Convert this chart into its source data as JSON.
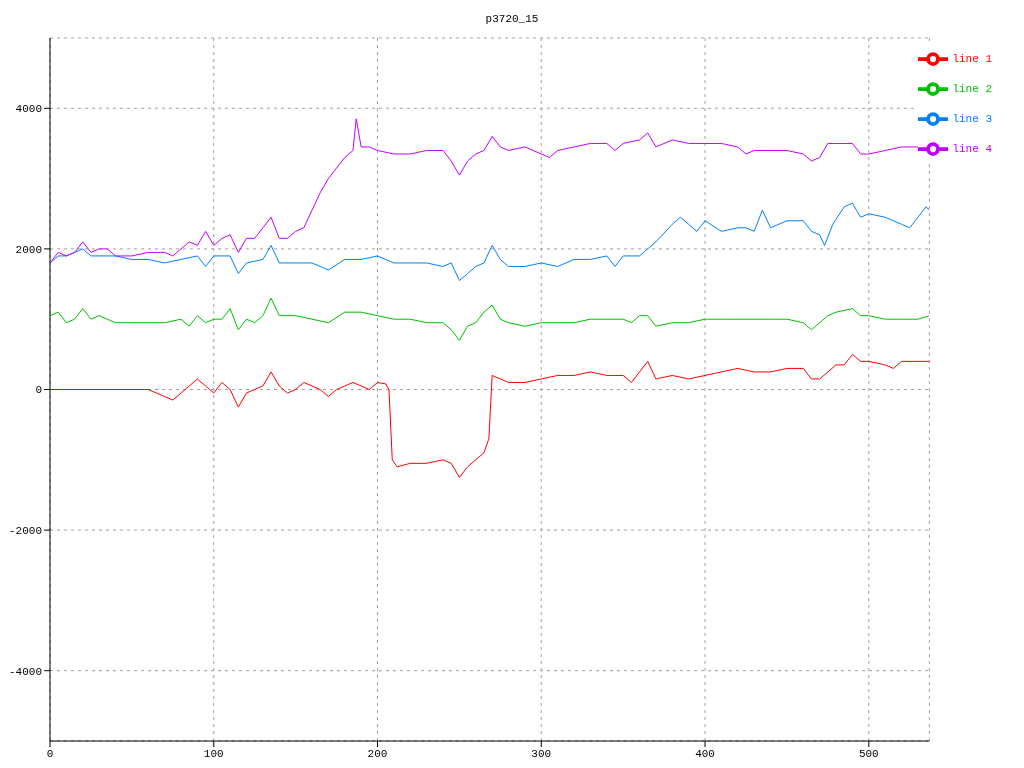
{
  "chart_data": {
    "type": "line",
    "title": "p3720_15",
    "xlim": [
      0,
      537
    ],
    "xticks": [
      0,
      100,
      200,
      300,
      400,
      500
    ],
    "ylim": [
      -5000,
      5000
    ],
    "yticks": [
      -4000,
      -2000,
      0,
      2000,
      4000
    ],
    "grid": true,
    "legend": "top right",
    "line_style": "solid",
    "marker": "none",
    "series": [
      {
        "name": "line 1",
        "color": "#ff0000",
        "x": [
          0,
          60,
          65,
          70,
          75,
          80,
          90,
          95,
          100,
          105,
          110,
          115,
          120,
          125,
          130,
          135,
          140,
          145,
          150,
          155,
          160,
          165,
          170,
          175,
          180,
          185,
          190,
          195,
          200,
          205,
          207,
          209,
          212,
          220,
          230,
          240,
          245,
          250,
          255,
          260,
          265,
          268,
          270,
          275,
          280,
          290,
          300,
          310,
          320,
          330,
          340,
          350,
          355,
          360,
          365,
          370,
          380,
          390,
          400,
          410,
          420,
          430,
          440,
          450,
          460,
          465,
          470,
          475,
          480,
          485,
          490,
          495,
          500,
          510,
          515,
          520,
          530,
          537
        ],
        "values": [
          0,
          0,
          -50,
          -100,
          -150,
          -50,
          150,
          50,
          -50,
          100,
          0,
          -250,
          -50,
          0,
          50,
          250,
          50,
          -50,
          0,
          100,
          50,
          0,
          -100,
          0,
          50,
          100,
          50,
          0,
          100,
          80,
          0,
          -1000,
          -1100,
          -1050,
          -1050,
          -1000,
          -1050,
          -1250,
          -1100,
          -1000,
          -900,
          -700,
          200,
          150,
          100,
          100,
          150,
          200,
          200,
          250,
          200,
          200,
          100,
          250,
          400,
          150,
          200,
          150,
          200,
          250,
          300,
          250,
          250,
          300,
          300,
          150,
          150,
          250,
          350,
          350,
          500,
          400,
          400,
          350,
          300,
          400,
          400,
          400
        ]
      },
      {
        "name": "line 2",
        "color": "#00c000",
        "x": [
          0,
          5,
          10,
          15,
          20,
          25,
          30,
          40,
          50,
          60,
          70,
          80,
          85,
          90,
          95,
          100,
          105,
          110,
          115,
          120,
          125,
          130,
          135,
          140,
          150,
          160,
          170,
          180,
          190,
          200,
          210,
          220,
          230,
          240,
          245,
          250,
          255,
          260,
          265,
          270,
          275,
          280,
          290,
          300,
          310,
          320,
          330,
          340,
          350,
          355,
          360,
          365,
          370,
          380,
          390,
          400,
          410,
          420,
          430,
          440,
          450,
          460,
          465,
          470,
          475,
          480,
          490,
          495,
          500,
          510,
          520,
          530,
          537
        ],
        "values": [
          1050,
          1100,
          950,
          1000,
          1150,
          1000,
          1050,
          950,
          950,
          950,
          950,
          1000,
          900,
          1050,
          950,
          1000,
          1000,
          1150,
          850,
          1000,
          950,
          1050,
          1300,
          1050,
          1050,
          1000,
          950,
          1100,
          1100,
          1050,
          1000,
          1000,
          950,
          950,
          850,
          700,
          900,
          950,
          1100,
          1200,
          1000,
          950,
          900,
          950,
          950,
          950,
          1000,
          1000,
          1000,
          950,
          1050,
          1050,
          900,
          950,
          950,
          1000,
          1000,
          1000,
          1000,
          1000,
          1000,
          950,
          850,
          950,
          1050,
          1100,
          1150,
          1050,
          1050,
          1000,
          1000,
          1000,
          1050
        ]
      },
      {
        "name": "line 3",
        "color": "#0080ff",
        "x": [
          0,
          5,
          10,
          20,
          25,
          30,
          40,
          50,
          60,
          70,
          80,
          90,
          95,
          100,
          110,
          115,
          120,
          130,
          135,
          140,
          150,
          160,
          170,
          180,
          190,
          200,
          210,
          220,
          230,
          240,
          245,
          250,
          255,
          260,
          265,
          270,
          275,
          280,
          290,
          300,
          310,
          320,
          330,
          340,
          345,
          350,
          355,
          360,
          365,
          370,
          380,
          385,
          390,
          395,
          400,
          410,
          420,
          425,
          430,
          435,
          440,
          450,
          460,
          465,
          470,
          473,
          478,
          485,
          490,
          495,
          500,
          510,
          520,
          525,
          530,
          535,
          537
        ],
        "values": [
          1800,
          1900,
          1900,
          2000,
          1900,
          1900,
          1900,
          1850,
          1850,
          1800,
          1850,
          1900,
          1750,
          1900,
          1900,
          1650,
          1800,
          1850,
          2050,
          1800,
          1800,
          1800,
          1700,
          1850,
          1850,
          1900,
          1800,
          1800,
          1800,
          1750,
          1800,
          1550,
          1650,
          1750,
          1800,
          2050,
          1850,
          1750,
          1750,
          1800,
          1750,
          1850,
          1850,
          1900,
          1750,
          1900,
          1900,
          1900,
          2000,
          2100,
          2350,
          2450,
          2350,
          2250,
          2400,
          2250,
          2300,
          2300,
          2250,
          2550,
          2300,
          2400,
          2400,
          2250,
          2200,
          2050,
          2350,
          2600,
          2650,
          2450,
          2500,
          2450,
          2350,
          2300,
          2450,
          2600,
          2550
        ]
      },
      {
        "name": "line 4",
        "color": "#c000ff",
        "x": [
          0,
          5,
          10,
          15,
          20,
          25,
          30,
          35,
          40,
          50,
          60,
          70,
          75,
          80,
          85,
          90,
          95,
          100,
          105,
          110,
          115,
          120,
          125,
          130,
          135,
          140,
          145,
          150,
          155,
          160,
          165,
          170,
          175,
          180,
          185,
          187,
          190,
          195,
          200,
          210,
          220,
          230,
          240,
          245,
          250,
          255,
          260,
          265,
          270,
          275,
          280,
          290,
          300,
          305,
          310,
          320,
          330,
          340,
          345,
          350,
          360,
          365,
          370,
          380,
          390,
          400,
          410,
          420,
          425,
          430,
          440,
          450,
          460,
          465,
          470,
          475,
          480,
          490,
          495,
          500,
          510,
          520,
          530,
          537
        ],
        "values": [
          1800,
          1950,
          1900,
          1950,
          2100,
          1950,
          2000,
          2000,
          1900,
          1900,
          1950,
          1950,
          1900,
          2000,
          2100,
          2050,
          2250,
          2050,
          2150,
          2200,
          1950,
          2150,
          2150,
          2300,
          2450,
          2150,
          2150,
          2250,
          2300,
          2550,
          2800,
          3000,
          3150,
          3300,
          3400,
          3850,
          3450,
          3450,
          3400,
          3350,
          3350,
          3400,
          3400,
          3250,
          3050,
          3250,
          3350,
          3400,
          3600,
          3450,
          3400,
          3450,
          3350,
          3300,
          3400,
          3450,
          3500,
          3500,
          3400,
          3500,
          3550,
          3650,
          3450,
          3550,
          3500,
          3500,
          3500,
          3450,
          3350,
          3400,
          3400,
          3400,
          3350,
          3250,
          3300,
          3500,
          3500,
          3500,
          3350,
          3350,
          3400,
          3450,
          3450,
          3400
        ]
      }
    ]
  }
}
